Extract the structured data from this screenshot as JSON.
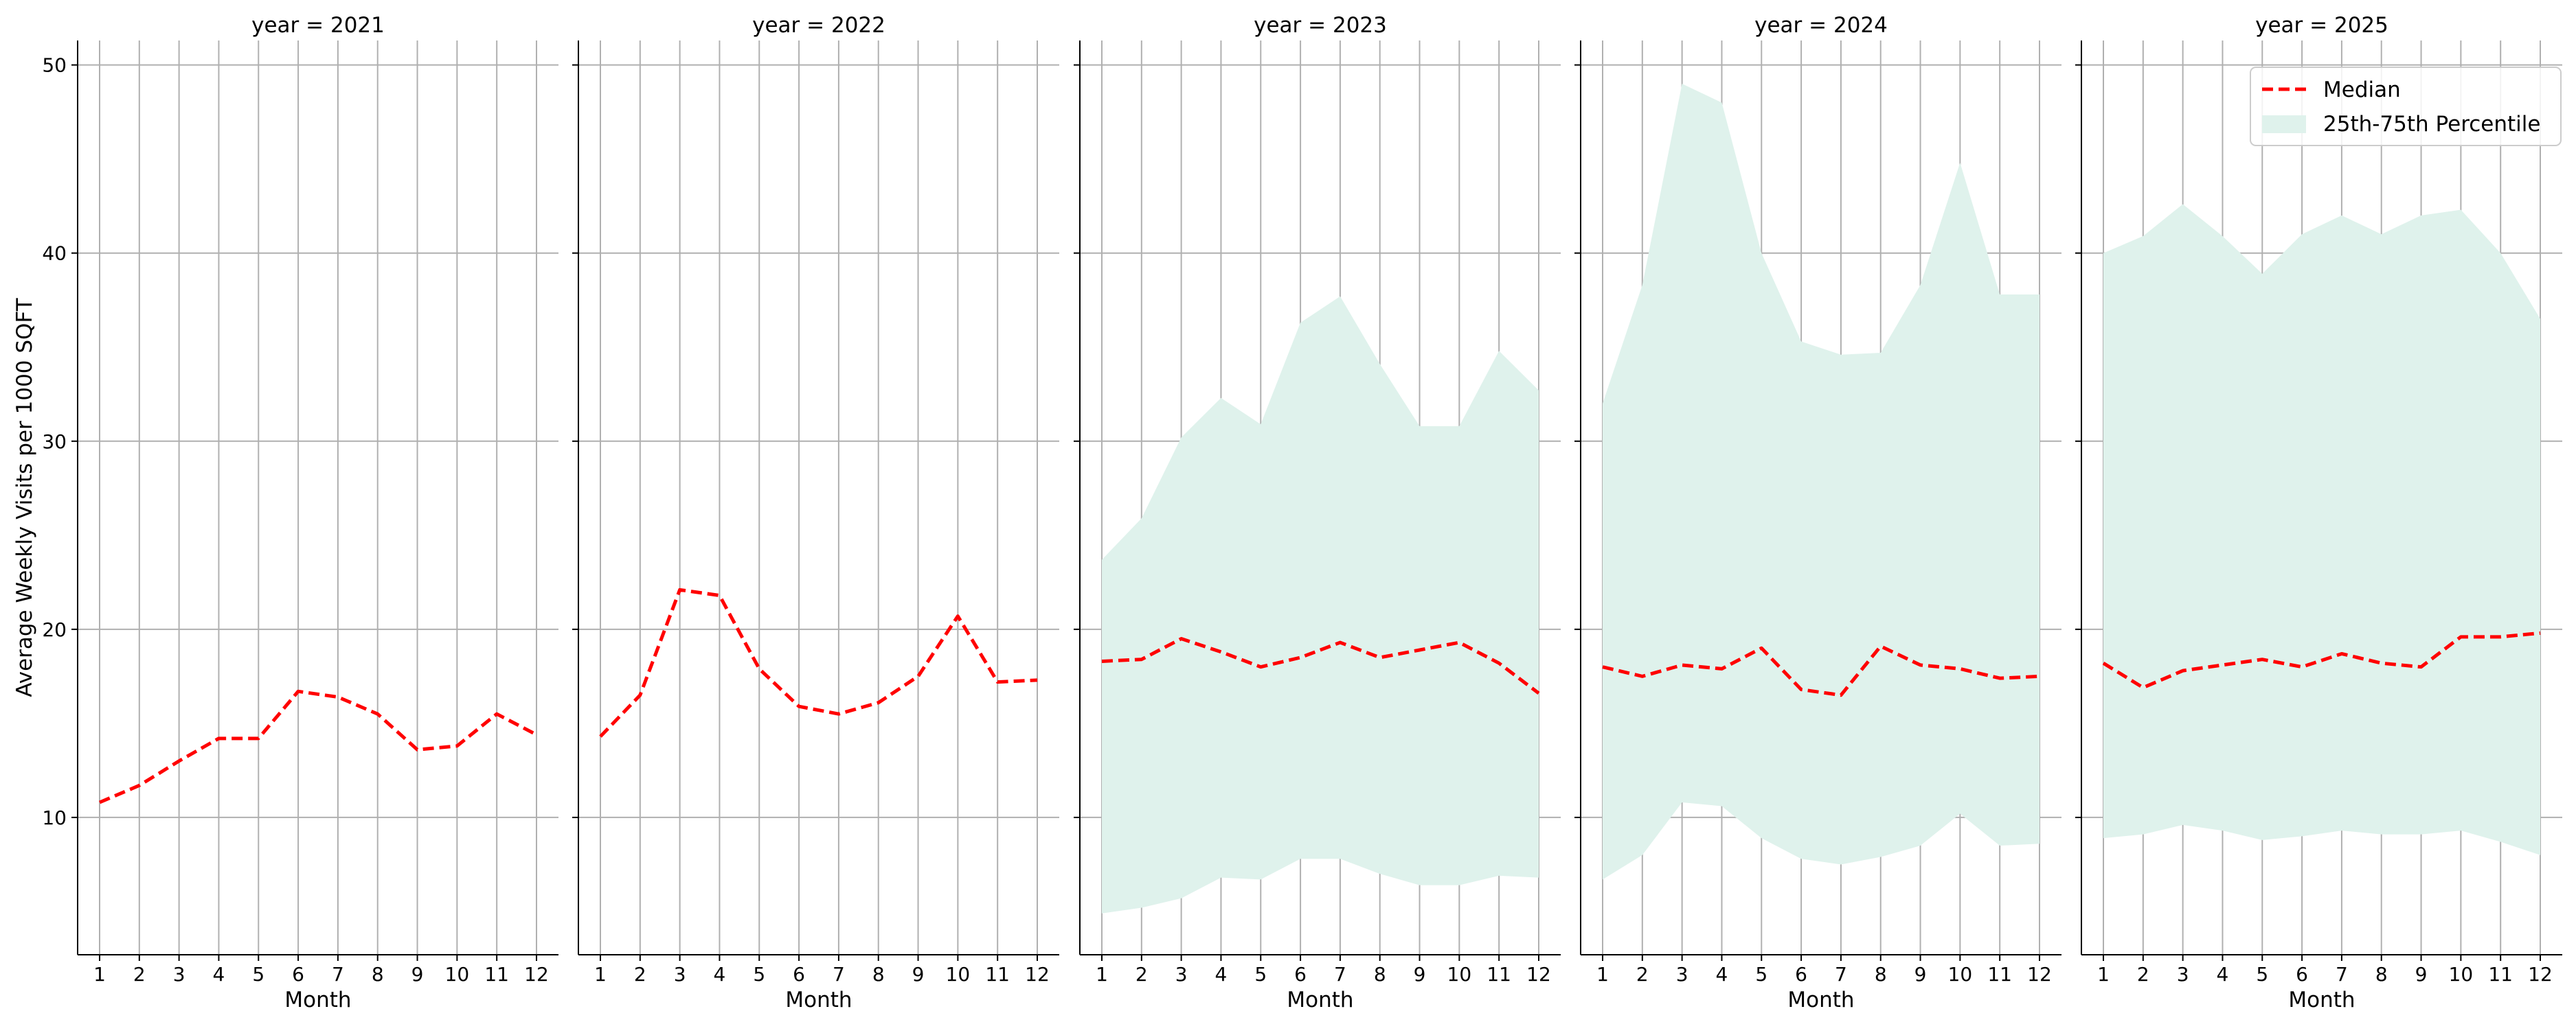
{
  "chart_data": {
    "type": "line",
    "ylabel": "Average Weekly Visits per 1000 SQFT",
    "xlabel": "Month",
    "x": [
      1,
      2,
      3,
      4,
      5,
      6,
      7,
      8,
      9,
      10,
      11,
      12
    ],
    "ylim": [
      2.7,
      51.3
    ],
    "yticks": [
      10,
      20,
      30,
      40,
      50
    ],
    "grid": true,
    "shared_y": true,
    "legend": {
      "location": "top-right of last panel",
      "median_label": "Median",
      "band_label": "25th-75th Percentile"
    },
    "colors": {
      "median": "#ff0000",
      "band": "#dff2ec"
    },
    "panels": [
      {
        "title": "year = 2021",
        "median": [
          10.8,
          11.7,
          13.0,
          14.2,
          14.2,
          16.7,
          16.4,
          15.5,
          13.6,
          13.8,
          15.5,
          14.4
        ]
      },
      {
        "title": "year = 2022",
        "median": [
          14.3,
          16.5,
          22.1,
          21.8,
          17.9,
          15.9,
          15.5,
          16.1,
          17.5,
          20.7,
          17.2,
          17.3
        ]
      },
      {
        "title": "year = 2023",
        "median": [
          18.3,
          18.4,
          19.5,
          18.8,
          18.0,
          18.5,
          19.3,
          18.5,
          18.9,
          19.3,
          18.2,
          16.6
        ],
        "q25": [
          4.9,
          5.2,
          5.7,
          6.8,
          6.7,
          7.8,
          7.8,
          7.0,
          6.4,
          6.4,
          6.9,
          6.8
        ],
        "q75": [
          23.7,
          25.9,
          30.2,
          32.3,
          30.9,
          36.3,
          37.7,
          34.1,
          30.8,
          30.8,
          34.8,
          32.7
        ]
      },
      {
        "title": "year = 2024",
        "median": [
          18.0,
          17.5,
          18.1,
          17.9,
          19.0,
          16.8,
          16.5,
          19.1,
          18.1,
          17.9,
          17.4,
          17.5
        ],
        "q25": [
          6.7,
          8.0,
          10.8,
          10.6,
          8.9,
          7.8,
          7.5,
          7.9,
          8.5,
          10.2,
          8.5,
          8.6
        ],
        "q75": [
          32.0,
          38.3,
          49.0,
          48.0,
          40.0,
          35.3,
          34.6,
          34.7,
          38.3,
          44.8,
          37.8,
          37.8
        ]
      },
      {
        "title": "year = 2025",
        "median": [
          18.2,
          16.9,
          17.8,
          18.1,
          18.4,
          18.0,
          18.7,
          18.2,
          18.0,
          19.6,
          19.6,
          19.8
        ],
        "q25": [
          8.9,
          9.1,
          9.6,
          9.3,
          8.8,
          9.0,
          9.3,
          9.1,
          9.1,
          9.3,
          8.7,
          8.0
        ],
        "q75": [
          40.0,
          40.9,
          42.6,
          40.9,
          38.9,
          41.0,
          42.0,
          41.0,
          42.0,
          42.3,
          40.0,
          36.5
        ]
      }
    ]
  }
}
